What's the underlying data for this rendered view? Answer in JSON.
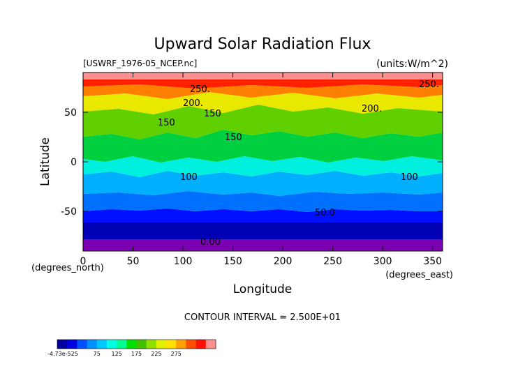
{
  "chart_data": {
    "type": "heatmap",
    "title": "Upward Solar Radiation Flux",
    "file_label": "[USWRF_1976-05_NCEP.nc]",
    "units_label": "(units:W/m^2)",
    "xlabel": "Longitude",
    "ylabel": "Latitude",
    "x_unit_label": "(degrees_east)",
    "y_unit_label": "(degrees_north)",
    "xlim": [
      0,
      360
    ],
    "ylim": [
      -90,
      90
    ],
    "x_ticks": [
      0,
      50,
      100,
      150,
      200,
      250,
      300,
      350
    ],
    "y_ticks": [
      -50,
      0,
      50
    ],
    "contour_interval_text": "CONTOUR INTERVAL = 2.500E+01",
    "contour_labels": [
      "250.",
      "200.",
      "150",
      "150",
      "150",
      "100",
      "100",
      "50.0",
      "0.00",
      "250.",
      "200."
    ],
    "colorbar": {
      "tick_labels": [
        "-4.73e-525",
        "75",
        "125",
        "175",
        "225",
        "275"
      ],
      "colors": [
        "#0000a0",
        "#0000e0",
        "#0050ff",
        "#0090ff",
        "#00c8ff",
        "#00ffe0",
        "#00ff90",
        "#00e000",
        "#40c000",
        "#90e000",
        "#e0f000",
        "#ffe000",
        "#ffa000",
        "#ff5000",
        "#ff1000",
        "#ff9090"
      ]
    },
    "zonal_bands": [
      {
        "lat_range": [
          -90,
          -78
        ],
        "value_range": "0-25"
      },
      {
        "lat_range": [
          -78,
          -60
        ],
        "value_range": "25-50"
      },
      {
        "lat_range": [
          -60,
          -48
        ],
        "value_range": "50-75"
      },
      {
        "lat_range": [
          -48,
          -30
        ],
        "value_range": "75-100"
      },
      {
        "lat_range": [
          -30,
          -15
        ],
        "value_range": "90-110"
      },
      {
        "lat_range": [
          -15,
          0
        ],
        "value_range": "100-125"
      },
      {
        "lat_range": [
          0,
          30
        ],
        "value_range": "110-150"
      },
      {
        "lat_range": [
          30,
          60
        ],
        "value_range": "125-175"
      },
      {
        "lat_range": [
          60,
          75
        ],
        "value_range": "175-225"
      },
      {
        "lat_range": [
          75,
          90
        ],
        "value_range": "225-300"
      }
    ]
  }
}
